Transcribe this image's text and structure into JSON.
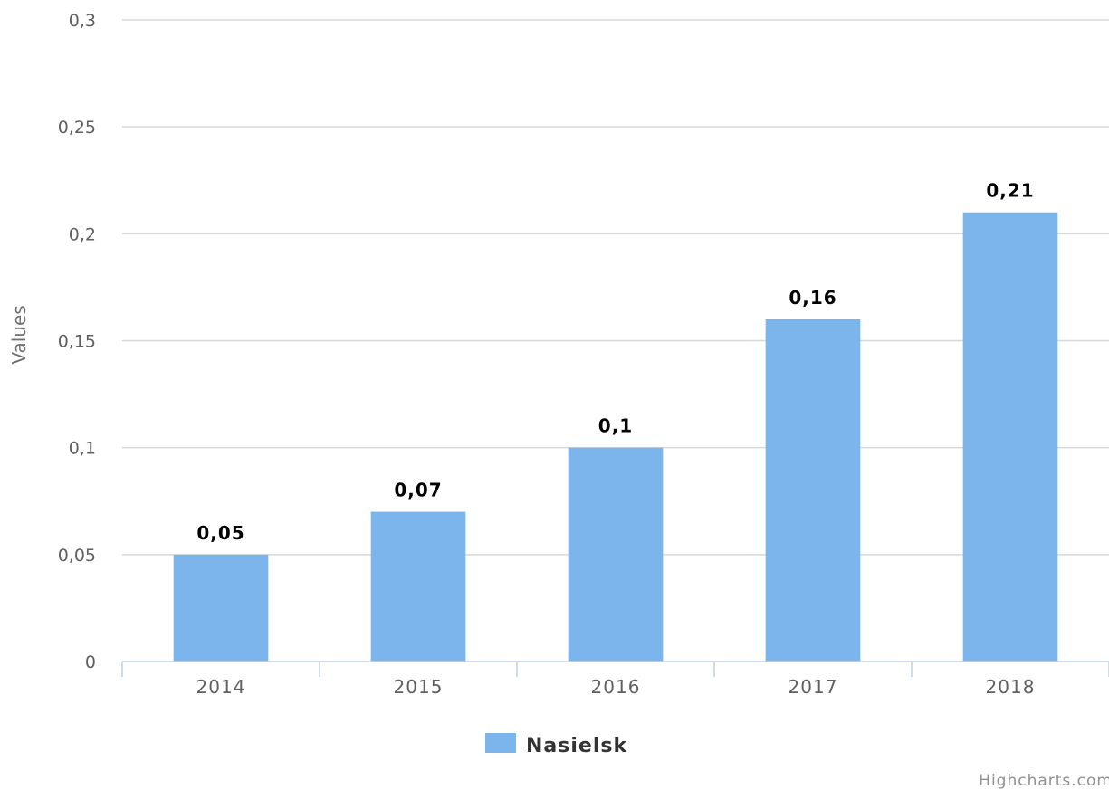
{
  "chart_data": {
    "type": "bar",
    "categories": [
      "2014",
      "2015",
      "2016",
      "2017",
      "2018"
    ],
    "series": [
      {
        "name": "Nasielsk",
        "values": [
          0.05,
          0.07,
          0.1,
          0.16,
          0.21
        ],
        "color": "#7cb5ec"
      }
    ],
    "data_labels": [
      "0,05",
      "0,07",
      "0,1",
      "0,16",
      "0,21"
    ],
    "ylabel": "Values",
    "xlabel": "",
    "ylim": [
      0,
      0.3
    ],
    "y_ticks": [
      0,
      0.05,
      0.1,
      0.15,
      0.2,
      0.25,
      0.3
    ],
    "y_tick_labels": [
      "0",
      "0,05",
      "0,1",
      "0,15",
      "0,2",
      "0,25",
      "0,3"
    ],
    "grid": true,
    "legend_position": "bottom-center",
    "credits": "Highcharts.com"
  },
  "colors": {
    "series": "#7cb5ec",
    "grid": "#d8d8d8",
    "axis": "#c0d0e0"
  }
}
